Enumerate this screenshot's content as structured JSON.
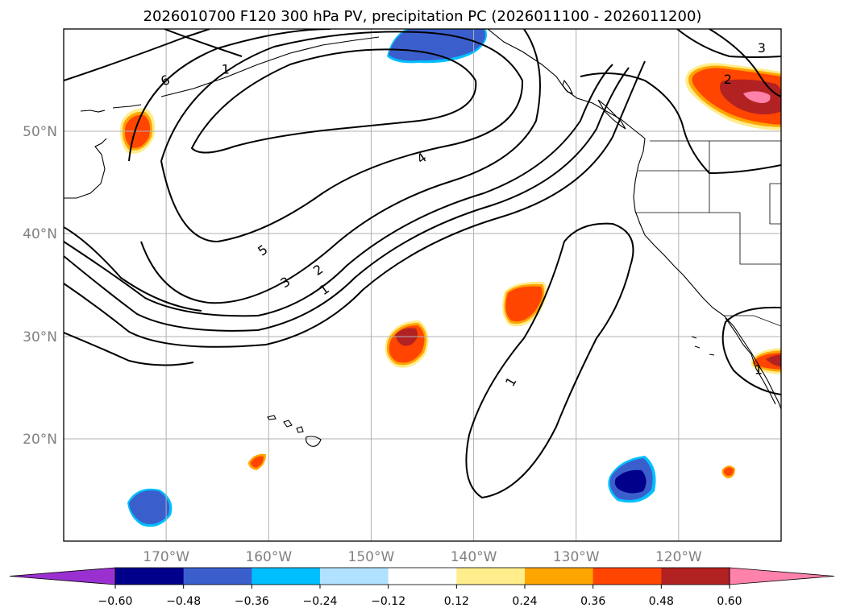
{
  "chart_data": {
    "type": "contour-map",
    "title": "2026010700 F120 300 hPa PV, precipitation PC (2026011100 - 2026011200)",
    "map_extent": {
      "lon_min": -180,
      "lon_max": -110,
      "lat_min": 10,
      "lat_max": 60
    },
    "grid": true,
    "lat_ticks": [
      {
        "value": 20,
        "label": "20°N"
      },
      {
        "value": 30,
        "label": "30°N"
      },
      {
        "value": 40,
        "label": "40°N"
      },
      {
        "value": 50,
        "label": "50°N"
      }
    ],
    "lon_ticks": [
      {
        "value": -170,
        "label": "170°W"
      },
      {
        "value": -160,
        "label": "160°W"
      },
      {
        "value": -150,
        "label": "150°W"
      },
      {
        "value": -140,
        "label": "140°W"
      },
      {
        "value": -130,
        "label": "130°W"
      },
      {
        "value": -120,
        "label": "120°W"
      }
    ],
    "pv_contour_labels": [
      {
        "text": "1",
        "lon": -164.2,
        "lat": 56.1,
        "rot": 0
      },
      {
        "text": "6",
        "lon": -170.1,
        "lat": 55.0,
        "rot": -25
      },
      {
        "text": "4",
        "lon": -145.1,
        "lat": 47.4,
        "rot": -35
      },
      {
        "text": "5",
        "lon": -160.6,
        "lat": 38.4,
        "rot": -35
      },
      {
        "text": "2",
        "lon": -155.2,
        "lat": 36.5,
        "rot": -35
      },
      {
        "text": "3",
        "lon": -158.4,
        "lat": 35.3,
        "rot": -35
      },
      {
        "text": "1",
        "lon": -154.6,
        "lat": 34.6,
        "rot": -35
      },
      {
        "text": "1",
        "lon": -136.4,
        "lat": 25.6,
        "rot": -60
      },
      {
        "text": "3",
        "lon": -111.9,
        "lat": 58.2,
        "rot": 0
      },
      {
        "text": "2",
        "lon": -115.2,
        "lat": 55.1,
        "rot": 0
      },
      {
        "text": "1",
        "lon": -112.2,
        "lat": 26.8,
        "rot": 0
      }
    ],
    "precip_pc_colorbar": {
      "levels": [
        -0.6,
        -0.48,
        -0.36,
        -0.24,
        -0.12,
        0.12,
        0.24,
        0.36,
        0.48,
        0.6
      ],
      "tick_labels": [
        "−0.60",
        "−0.48",
        "−0.36",
        "−0.24",
        "−0.12",
        "0.12",
        "0.24",
        "0.36",
        "0.48",
        "0.60"
      ],
      "colors": [
        "#9b30d0",
        "#00008b",
        "#3a5fcd",
        "#00bfff",
        "#b0e2ff",
        "#ffffff",
        "#ffec8b",
        "#ffa500",
        "#ff4500",
        "#b22222",
        "#ff82ab"
      ],
      "extend": "both"
    },
    "precip_blobs": [
      {
        "name": "aleutian-positive",
        "lon": -172.8,
        "lat": 50.0,
        "peak": 0.42
      },
      {
        "name": "gulf-alaska-negative",
        "lon": -141.5,
        "lat": 58.5,
        "peak": -0.42
      },
      {
        "name": "canada-positive",
        "lon": -113.5,
        "lat": 53.8,
        "peak": 0.62
      },
      {
        "name": "pacific-north-positive",
        "lon": -135.5,
        "lat": 32.5,
        "peak": 0.42
      },
      {
        "name": "pacific-center-positive",
        "lon": -146.0,
        "lat": 29.3,
        "peak": 0.5
      },
      {
        "name": "baja-positive",
        "lon": -111.5,
        "lat": 28.5,
        "peak": 0.45
      },
      {
        "name": "hawaii-west-positive",
        "lon": -161.0,
        "lat": 17.7,
        "peak": 0.4
      },
      {
        "name": "pacific-south-negative",
        "lon": -125.0,
        "lat": 15.8,
        "peak": -0.55
      },
      {
        "name": "southwest-negative",
        "lon": -172.5,
        "lat": 13.0,
        "peak": -0.4
      },
      {
        "name": "mexico-positive",
        "lon": -115.5,
        "lat": 16.8,
        "peak": 0.42
      }
    ]
  }
}
